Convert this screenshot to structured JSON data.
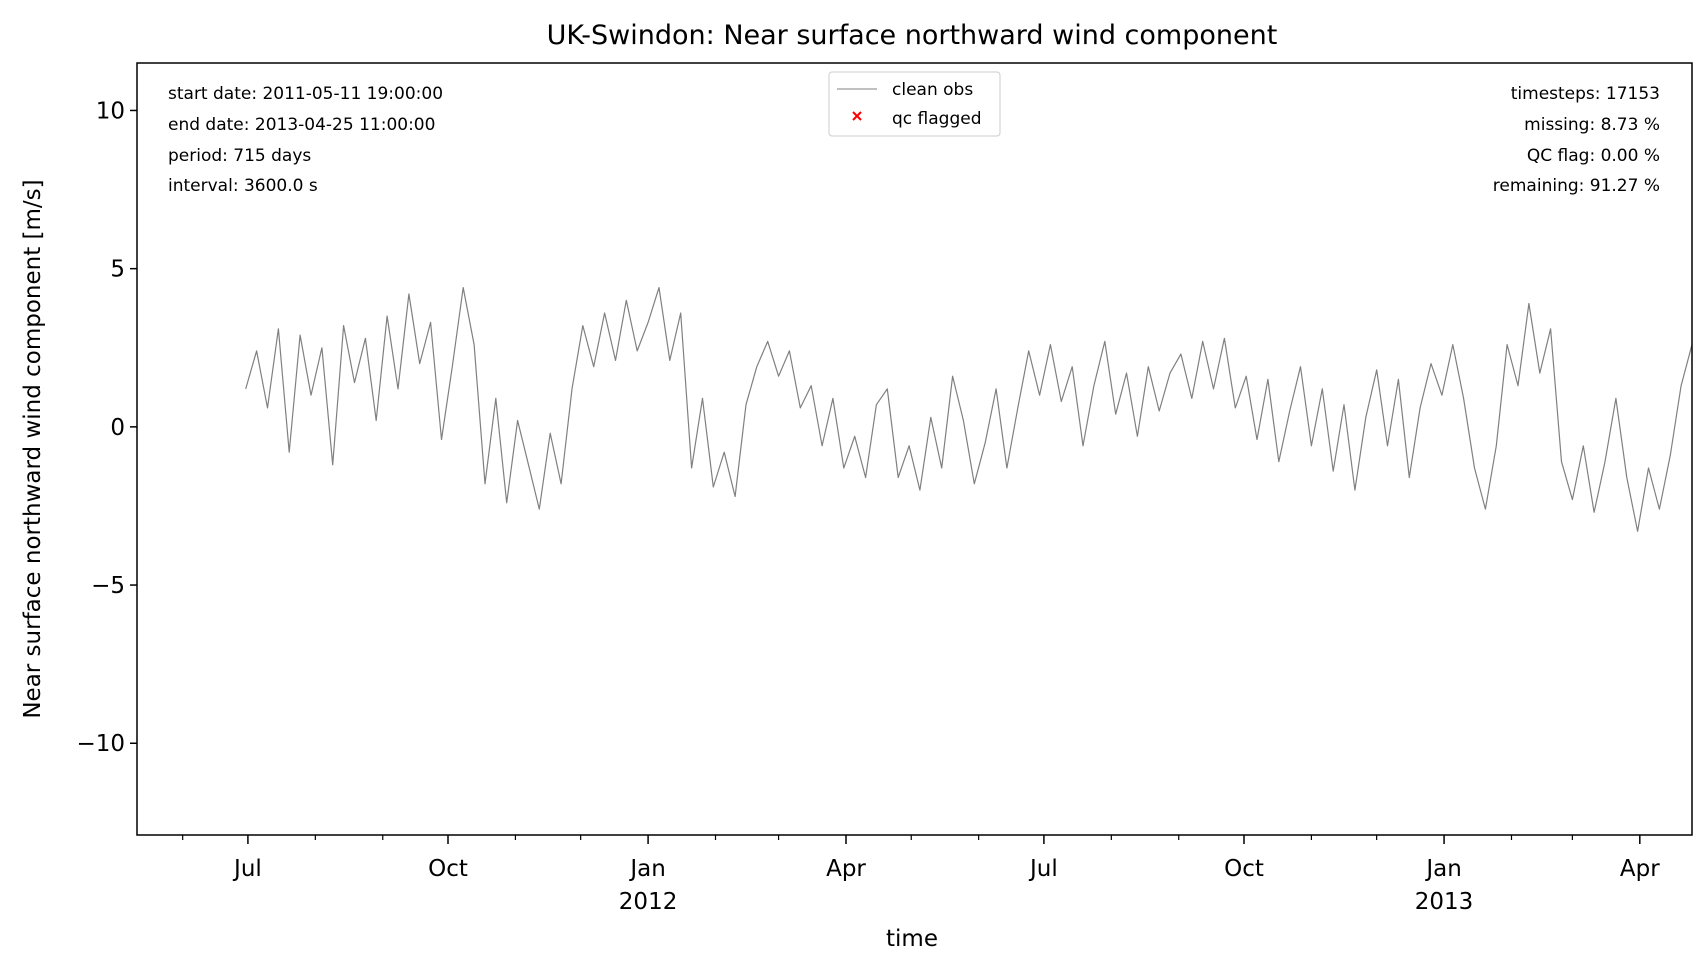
{
  "chart_data": {
    "type": "line",
    "title": "UK-Swindon: Near surface northward wind component",
    "xlabel": "time",
    "ylabel": "Near surface northward wind component [m/s]",
    "x_start": "2011-05-11 19:00:00",
    "x_end": "2013-04-25 11:00:00",
    "x_range": [
      "2011-05-11",
      "2013-04-25"
    ],
    "ylim": [
      -12.9,
      11.5
    ],
    "y_ticks": [
      10,
      5,
      0,
      -5,
      -10
    ],
    "y_tick_labels": [
      "10",
      "5",
      "0",
      "−5",
      "−10"
    ],
    "x_ticks": [
      {
        "date": "2011-07-01",
        "label": "Jul",
        "year": ""
      },
      {
        "date": "2011-10-01",
        "label": "Oct",
        "year": ""
      },
      {
        "date": "2012-01-01",
        "label": "Jan",
        "year": "2012"
      },
      {
        "date": "2012-04-01",
        "label": "Apr",
        "year": ""
      },
      {
        "date": "2012-07-01",
        "label": "Jul",
        "year": ""
      },
      {
        "date": "2012-10-01",
        "label": "Oct",
        "year": ""
      },
      {
        "date": "2013-01-01",
        "label": "Jan",
        "year": "2013"
      },
      {
        "date": "2013-04-01",
        "label": "Apr",
        "year": ""
      }
    ],
    "grid": false,
    "legend_position": "top-center",
    "series": [
      {
        "name": "clean obs",
        "color": "#808080",
        "points": [
          [
            "2011-06-30",
            1.2
          ],
          [
            "2011-07-05",
            2.4
          ],
          [
            "2011-07-10",
            0.6
          ],
          [
            "2011-07-15",
            3.1
          ],
          [
            "2011-07-20",
            -0.8
          ],
          [
            "2011-07-25",
            2.9
          ],
          [
            "2011-07-30",
            1.0
          ],
          [
            "2011-08-04",
            2.5
          ],
          [
            "2011-08-09",
            -1.2
          ],
          [
            "2011-08-14",
            3.2
          ],
          [
            "2011-08-19",
            1.4
          ],
          [
            "2011-08-24",
            2.8
          ],
          [
            "2011-08-29",
            0.2
          ],
          [
            "2011-09-03",
            3.5
          ],
          [
            "2011-09-08",
            1.2
          ],
          [
            "2011-09-13",
            4.2
          ],
          [
            "2011-09-18",
            2.0
          ],
          [
            "2011-09-23",
            3.3
          ],
          [
            "2011-09-28",
            -0.4
          ],
          [
            "2011-10-03",
            1.9
          ],
          [
            "2011-10-08",
            4.4
          ],
          [
            "2011-10-13",
            2.6
          ],
          [
            "2011-10-18",
            -1.8
          ],
          [
            "2011-10-23",
            0.9
          ],
          [
            "2011-10-28",
            -2.4
          ],
          [
            "2011-11-02",
            0.2
          ],
          [
            "2011-11-07",
            -1.2
          ],
          [
            "2011-11-12",
            -2.6
          ],
          [
            "2011-11-17",
            -0.2
          ],
          [
            "2011-11-22",
            -1.8
          ],
          [
            "2011-11-27",
            1.2
          ],
          [
            "2011-12-02",
            3.2
          ],
          [
            "2011-12-07",
            1.9
          ],
          [
            "2011-12-12",
            3.6
          ],
          [
            "2011-12-17",
            2.1
          ],
          [
            "2011-12-22",
            4.0
          ],
          [
            "2011-12-27",
            2.4
          ],
          [
            "2012-01-01",
            3.3
          ],
          [
            "2012-01-06",
            4.4
          ],
          [
            "2012-01-11",
            2.1
          ],
          [
            "2012-01-16",
            3.6
          ],
          [
            "2012-01-21",
            -1.3
          ],
          [
            "2012-01-26",
            0.9
          ],
          [
            "2012-01-31",
            -1.9
          ],
          [
            "2012-02-05",
            -0.8
          ],
          [
            "2012-02-10",
            -2.2
          ],
          [
            "2012-02-15",
            0.7
          ],
          [
            "2012-02-20",
            1.9
          ],
          [
            "2012-02-25",
            2.7
          ],
          [
            "2012-03-01",
            1.6
          ],
          [
            "2012-03-06",
            2.4
          ],
          [
            "2012-03-11",
            0.6
          ],
          [
            "2012-03-16",
            1.3
          ],
          [
            "2012-03-21",
            -0.6
          ],
          [
            "2012-03-26",
            0.9
          ],
          [
            "2012-03-31",
            -1.3
          ],
          [
            "2012-04-05",
            -0.3
          ],
          [
            "2012-04-10",
            -1.6
          ],
          [
            "2012-04-15",
            0.7
          ],
          [
            "2012-04-20",
            1.2
          ],
          [
            "2012-04-25",
            -1.6
          ],
          [
            "2012-04-30",
            -0.6
          ],
          [
            "2012-05-05",
            -2.0
          ],
          [
            "2012-05-10",
            0.3
          ],
          [
            "2012-05-15",
            -1.3
          ],
          [
            "2012-05-20",
            1.6
          ],
          [
            "2012-05-25",
            0.2
          ],
          [
            "2012-05-30",
            -1.8
          ],
          [
            "2012-06-04",
            -0.5
          ],
          [
            "2012-06-09",
            1.2
          ],
          [
            "2012-06-14",
            -1.3
          ],
          [
            "2012-06-19",
            0.6
          ],
          [
            "2012-06-24",
            2.4
          ],
          [
            "2012-06-29",
            1.0
          ],
          [
            "2012-07-04",
            2.6
          ],
          [
            "2012-07-09",
            0.8
          ],
          [
            "2012-07-14",
            1.9
          ],
          [
            "2012-07-19",
            -0.6
          ],
          [
            "2012-07-24",
            1.3
          ],
          [
            "2012-07-29",
            2.7
          ],
          [
            "2012-08-03",
            0.4
          ],
          [
            "2012-08-08",
            1.7
          ],
          [
            "2012-08-13",
            -0.3
          ],
          [
            "2012-08-18",
            1.9
          ],
          [
            "2012-08-23",
            0.5
          ],
          [
            "2012-08-28",
            1.7
          ],
          [
            "2012-09-02",
            2.3
          ],
          [
            "2012-09-07",
            0.9
          ],
          [
            "2012-09-12",
            2.7
          ],
          [
            "2012-09-17",
            1.2
          ],
          [
            "2012-09-22",
            2.8
          ],
          [
            "2012-09-27",
            0.6
          ],
          [
            "2012-10-02",
            1.6
          ],
          [
            "2012-10-07",
            -0.4
          ],
          [
            "2012-10-12",
            1.5
          ],
          [
            "2012-10-17",
            -1.1
          ],
          [
            "2012-10-22",
            0.5
          ],
          [
            "2012-10-27",
            1.9
          ],
          [
            "2012-11-01",
            -0.6
          ],
          [
            "2012-11-06",
            1.2
          ],
          [
            "2012-11-11",
            -1.4
          ],
          [
            "2012-11-16",
            0.7
          ],
          [
            "2012-11-21",
            -2.0
          ],
          [
            "2012-11-26",
            0.3
          ],
          [
            "2012-12-01",
            1.8
          ],
          [
            "2012-12-06",
            -0.6
          ],
          [
            "2012-12-11",
            1.5
          ],
          [
            "2012-12-16",
            -1.6
          ],
          [
            "2012-12-21",
            0.6
          ],
          [
            "2012-12-26",
            2.0
          ],
          [
            "2012-12-31",
            1.0
          ],
          [
            "2013-01-05",
            2.6
          ],
          [
            "2013-01-10",
            0.9
          ],
          [
            "2013-01-15",
            -1.3
          ],
          [
            "2013-01-20",
            -2.6
          ],
          [
            "2013-01-25",
            -0.6
          ],
          [
            "2013-01-30",
            2.6
          ],
          [
            "2013-02-04",
            1.3
          ],
          [
            "2013-02-09",
            3.9
          ],
          [
            "2013-02-14",
            1.7
          ],
          [
            "2013-02-19",
            3.1
          ],
          [
            "2013-02-24",
            -1.1
          ],
          [
            "2013-03-01",
            -2.3
          ],
          [
            "2013-03-06",
            -0.6
          ],
          [
            "2013-03-11",
            -2.7
          ],
          [
            "2013-03-16",
            -1.1
          ],
          [
            "2013-03-21",
            0.9
          ],
          [
            "2013-03-26",
            -1.6
          ],
          [
            "2013-03-31",
            -3.3
          ],
          [
            "2013-04-05",
            -1.3
          ],
          [
            "2013-04-10",
            -2.6
          ],
          [
            "2013-04-15",
            -0.9
          ],
          [
            "2013-04-20",
            1.3
          ],
          [
            "2013-04-25",
            2.6
          ]
        ]
      },
      {
        "name": "qc flagged",
        "color": "#ff0000",
        "points": []
      }
    ],
    "annotations_left": [
      "start date: 2011-05-11 19:00:00",
      "end date: 2013-04-25 11:00:00",
      "period: 715 days",
      "interval: 3600.0 s"
    ],
    "annotations_right": [
      "timesteps: 17153",
      "missing: 8.73 %",
      "QC flag: 0.00 %",
      "remaining: 91.27 %"
    ]
  }
}
